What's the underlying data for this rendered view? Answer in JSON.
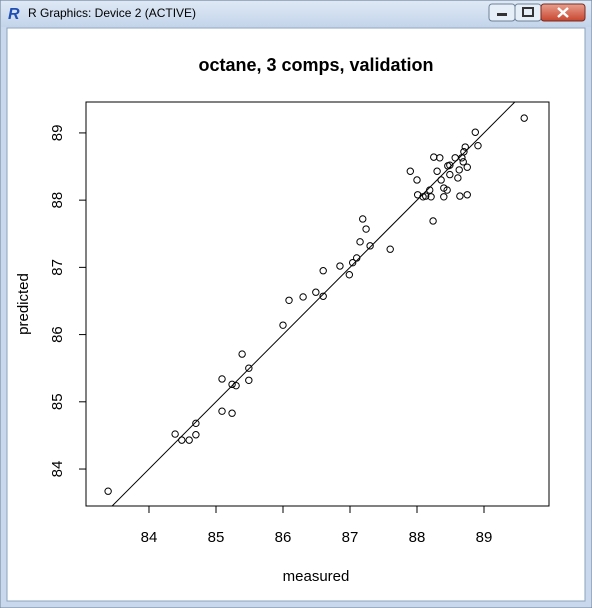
{
  "window": {
    "title": "R Graphics: Device 2 (ACTIVE)"
  },
  "chart_data": {
    "type": "scatter",
    "title": "octane, 3 comps, validation",
    "x_label": "measured",
    "y_label": "predicted",
    "x": [
      83.39,
      84.39,
      84.49,
      84.6,
      84.7,
      84.7,
      85.09,
      85.09,
      85.24,
      85.24,
      85.3,
      85.39,
      85.49,
      85.49,
      86.0,
      86.09,
      86.3,
      86.49,
      86.6,
      86.6,
      86.85,
      86.99,
      87.04,
      87.1,
      87.15,
      87.19,
      87.24,
      87.3,
      87.6,
      87.9,
      88.0,
      88.01,
      88.09,
      88.13,
      88.19,
      88.21,
      88.24,
      88.25,
      88.3,
      88.34,
      88.36,
      88.4,
      88.4,
      88.45,
      88.46,
      88.49,
      88.49,
      88.57,
      88.61,
      88.63,
      88.64,
      88.67,
      88.69,
      88.7,
      88.72,
      88.75,
      88.75,
      88.87,
      88.91,
      89.6
    ],
    "values": [
      83.67,
      84.52,
      84.43,
      84.43,
      84.68,
      84.51,
      85.34,
      84.86,
      84.83,
      85.26,
      85.24,
      85.71,
      85.5,
      85.32,
      86.14,
      86.51,
      86.56,
      86.63,
      86.57,
      86.95,
      87.02,
      86.89,
      87.07,
      87.14,
      87.38,
      87.72,
      87.57,
      87.32,
      87.27,
      88.43,
      88.3,
      88.08,
      88.05,
      88.06,
      88.15,
      88.05,
      87.69,
      88.64,
      88.43,
      88.63,
      88.3,
      88.18,
      88.05,
      88.15,
      88.51,
      88.38,
      88.52,
      88.63,
      88.33,
      88.45,
      88.06,
      88.63,
      88.57,
      88.72,
      88.79,
      88.49,
      88.08,
      89.01,
      88.81,
      89.22
    ],
    "color": "#000000",
    "xlim": [
      83.06,
      89.97
    ],
    "xticks": [
      84,
      85,
      86,
      87,
      88,
      89
    ],
    "ylim": [
      83.45,
      89.46
    ],
    "yticks": [
      84,
      85,
      86,
      87,
      88,
      89
    ],
    "abline": {
      "intercept": 0,
      "slope": 1
    }
  }
}
